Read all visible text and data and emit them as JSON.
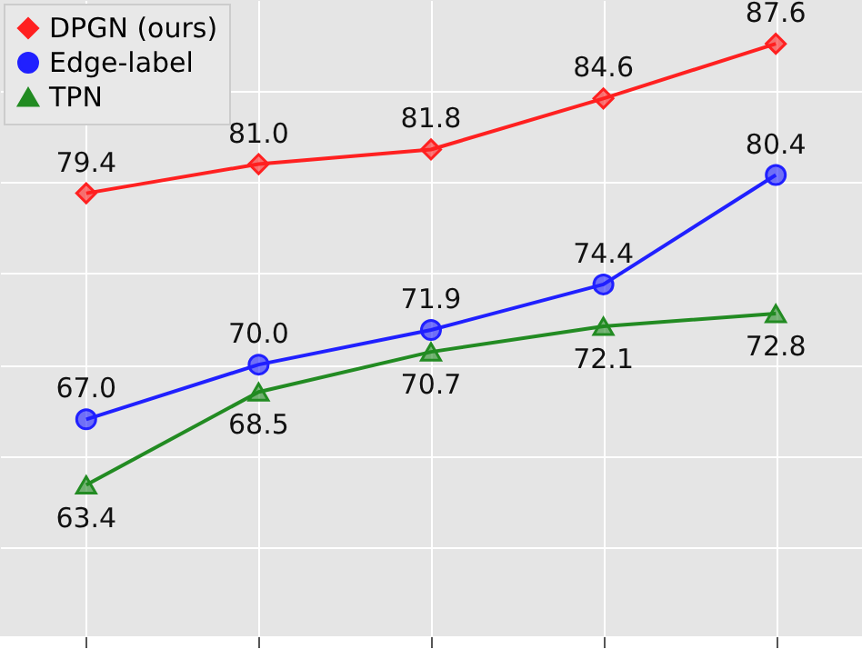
{
  "chart_data": {
    "type": "line",
    "categories": [
      null,
      null,
      null,
      null,
      null
    ],
    "series": [
      {
        "name": "DPGN (ours)",
        "color": "#ff2020",
        "marker": "diamond",
        "values": [
          79.4,
          81.0,
          81.8,
          84.6,
          87.6
        ],
        "value_labels": [
          "79.4",
          "81.0",
          "81.8",
          "84.6",
          "87.6"
        ]
      },
      {
        "name": "Edge-label",
        "color": "#2020ff",
        "marker": "circle",
        "values": [
          67.0,
          70.0,
          71.9,
          74.4,
          80.4
        ],
        "value_labels": [
          "67.0",
          "70.0",
          "71.9",
          "74.4",
          "80.4"
        ]
      },
      {
        "name": "TPN",
        "color": "#228b22",
        "marker": "triangle",
        "values": [
          63.4,
          68.5,
          70.7,
          72.1,
          72.8
        ],
        "value_labels": [
          "63.4",
          "68.5",
          "70.7",
          "72.1",
          "72.8"
        ]
      }
    ],
    "ylim": [
      55.1,
      90
    ],
    "yticks": [
      60,
      65,
      70,
      75,
      80,
      85
    ],
    "tick_labels": false,
    "grid": true,
    "legend": "top left",
    "line_style": "solid"
  }
}
